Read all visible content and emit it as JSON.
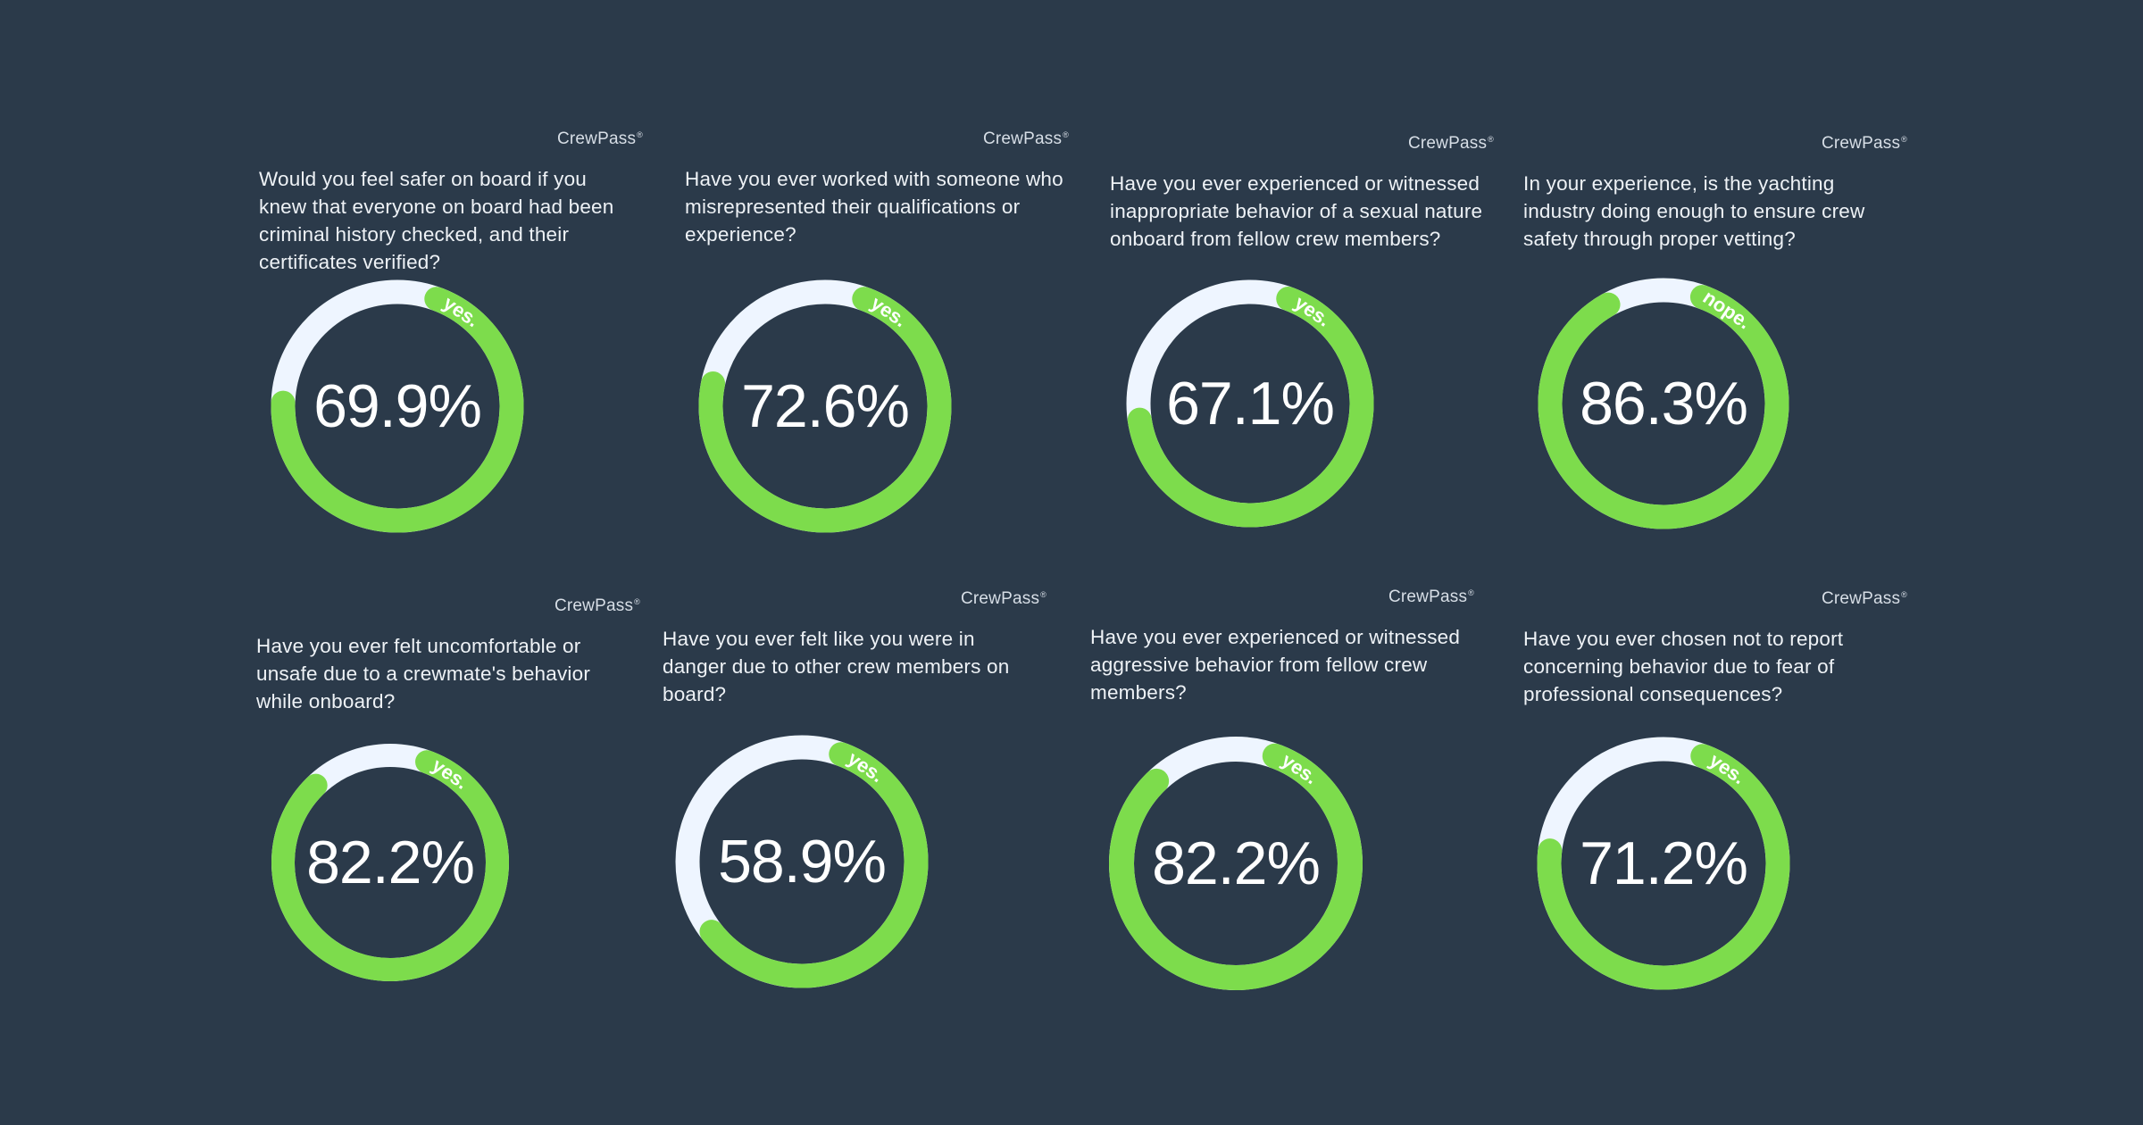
{
  "brand_name": "CrewPass",
  "brand_mark": "®",
  "colors": {
    "background": "#2b3a4a",
    "ring_track": "#eef5ff",
    "ring_fill": "#7ddc4c",
    "answer_text": "#ffffff",
    "question_text": "#eef2f6"
  },
  "chart_data": [
    {
      "type": "pie",
      "question": "Would you feel safer on board if you knew that everyone on board had been criminal history checked, and their certificates verified?",
      "answer": "yes.",
      "value": 69.9,
      "label": "69.9%"
    },
    {
      "type": "pie",
      "question": "Have you ever worked with someone who misrepresented their qualifications or experience?",
      "answer": "yes.",
      "value": 72.6,
      "label": "72.6%"
    },
    {
      "type": "pie",
      "question": "Have you ever experienced or witnessed inappropriate behavior of a sexual nature onboard from fellow crew members?",
      "answer": "yes.",
      "value": 67.1,
      "label": "67.1%"
    },
    {
      "type": "pie",
      "question": "In your experience, is the yachting industry doing enough to ensure crew safety through proper vetting?",
      "answer": "nope.",
      "value": 86.3,
      "label": "86.3%"
    },
    {
      "type": "pie",
      "question": "Have you ever felt uncomfortable or unsafe due to a crewmate's behavior while onboard?",
      "answer": "yes.",
      "value": 82.2,
      "label": "82.2%"
    },
    {
      "type": "pie",
      "question": "Have you ever felt like you were in danger due to other crew members on board?",
      "answer": "yes.",
      "value": 58.9,
      "label": "58.9%"
    },
    {
      "type": "pie",
      "question": "Have you ever experienced or witnessed aggressive behavior from fellow crew members?",
      "answer": "yes.",
      "value": 82.2,
      "label": "82.2%"
    },
    {
      "type": "pie",
      "question": "Have you ever chosen not to report concerning behavior due to fear of professional consequences?",
      "answer": "yes.",
      "value": 71.2,
      "label": "71.2%"
    }
  ]
}
